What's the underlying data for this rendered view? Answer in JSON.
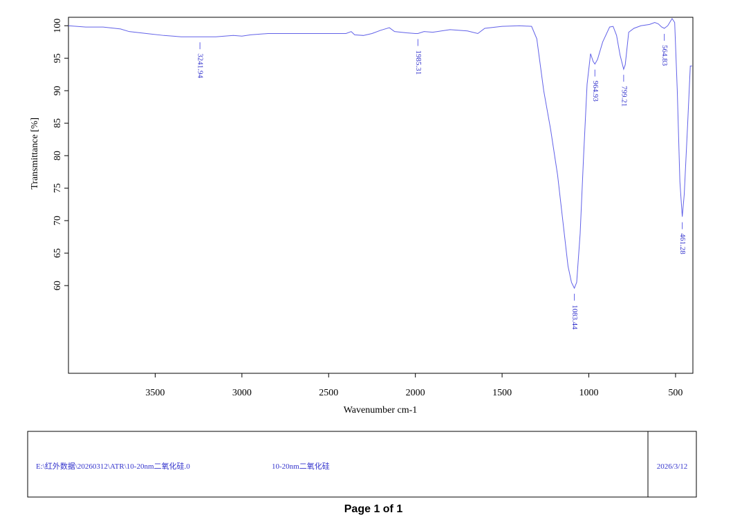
{
  "chart_data": {
    "type": "line",
    "xlabel": "Wavenumber cm-1",
    "ylabel": "Transmittance [%]",
    "xlim": [
      4000,
      400
    ],
    "ylim": [
      46.5,
      101.3
    ],
    "xticks": [
      3500,
      3000,
      2500,
      2000,
      1500,
      1000,
      500
    ],
    "yticks": [
      60,
      65,
      70,
      75,
      80,
      85,
      90,
      95,
      100
    ],
    "color": "#6060e8",
    "x": [
      4000,
      3900,
      3800,
      3700,
      3650,
      3550,
      3450,
      3350,
      3241.94,
      3150,
      3050,
      3000,
      2950,
      2850,
      2700,
      2550,
      2400,
      2370,
      2350,
      2300,
      2250,
      2200,
      2150,
      2120,
      2050,
      2000,
      1985.31,
      1950,
      1900,
      1800,
      1700,
      1640,
      1600,
      1500,
      1400,
      1330,
      1300,
      1260,
      1220,
      1180,
      1150,
      1120,
      1100,
      1083.44,
      1070,
      1050,
      1030,
      1010,
      990,
      975,
      964.93,
      950,
      920,
      880,
      860,
      840,
      820,
      799.21,
      790,
      770,
      740,
      700,
      650,
      620,
      600,
      580,
      564.83,
      545,
      520,
      505,
      490,
      475,
      461.28,
      450,
      430,
      415,
      405
    ],
    "values": [
      100.0,
      99.8,
      99.8,
      99.5,
      99.1,
      98.8,
      98.5,
      98.3,
      98.3,
      98.3,
      98.5,
      98.4,
      98.6,
      98.8,
      98.8,
      98.8,
      98.8,
      99.1,
      98.6,
      98.5,
      98.8,
      99.3,
      99.7,
      99.1,
      98.9,
      98.8,
      98.8,
      99.1,
      99.0,
      99.4,
      99.2,
      98.8,
      99.6,
      99.9,
      100.0,
      99.9,
      98.0,
      90.0,
      84.0,
      77.0,
      70.0,
      63.0,
      60.5,
      59.6,
      60.5,
      68.0,
      80.0,
      91.0,
      95.7,
      94.5,
      94.1,
      94.8,
      97.5,
      99.8,
      99.9,
      98.5,
      95.5,
      93.3,
      94.0,
      99.0,
      99.6,
      100.0,
      100.2,
      100.5,
      100.3,
      99.8,
      99.6,
      100.0,
      101.1,
      100.5,
      90.0,
      76.0,
      70.6,
      74.0,
      85.0,
      93.8,
      93.8
    ],
    "peaks": [
      {
        "x": 3241.94,
        "y": 98.3
      },
      {
        "x": 1985.31,
        "y": 98.8
      },
      {
        "x": 1083.44,
        "y": 59.6
      },
      {
        "x": 964.93,
        "y": 94.1
      },
      {
        "x": 799.21,
        "y": 93.3
      },
      {
        "x": 564.83,
        "y": 99.6
      },
      {
        "x": 461.28,
        "y": 70.6
      }
    ]
  },
  "footer": {
    "path": "E:\\红外数据\\20260312\\ATR\\10-20nm二氧化硅.0",
    "sample": "10-20nm二氧化硅",
    "date": "2026/3/12",
    "page": "Page 1 of 1"
  }
}
